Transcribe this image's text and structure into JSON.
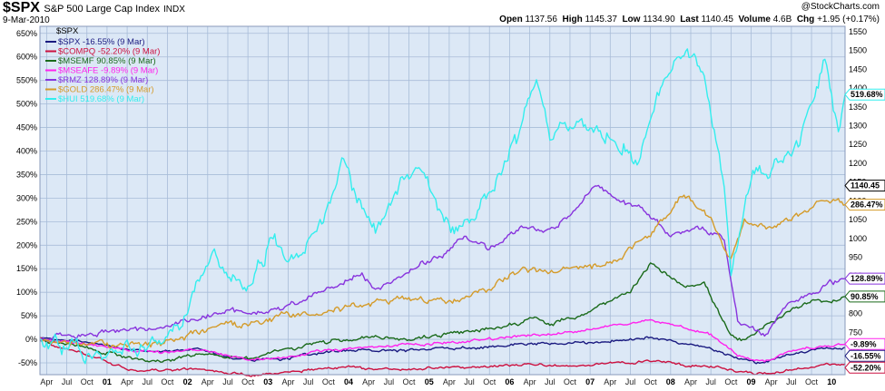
{
  "header": {
    "symbol": "$SPX",
    "name": "S&P 500 Large Cap Index",
    "exchange": "INDX",
    "date": "9-Mar-2010",
    "credit": "@StockCharts.com",
    "quote": {
      "open_label": "Open",
      "open": "1137.56",
      "high_label": "High",
      "high": "1145.37",
      "low_label": "Low",
      "low": "1134.90",
      "last_label": "Last",
      "last": "1140.45",
      "volume_label": "Volume",
      "volume": "4.6B",
      "chg_label": "Chg",
      "chg": "+1.95 (+0.17%)"
    }
  },
  "chart_data": {
    "type": "line",
    "legend_title": "$SPX",
    "legend_position": "top-left",
    "grid": true,
    "colors": {
      "background": "#dce8f6",
      "grid": "#a8bcd8",
      "frame": "#8899bb"
    },
    "left_axis": {
      "unit": "%",
      "ticks": [
        "650%",
        "600%",
        "550%",
        "500%",
        "450%",
        "400%",
        "350%",
        "300%",
        "250%",
        "200%",
        "150%",
        "100%",
        "50%",
        "0%",
        "-50%"
      ],
      "values": [
        650,
        600,
        550,
        500,
        450,
        400,
        350,
        300,
        250,
        200,
        150,
        100,
        50,
        0,
        -50
      ],
      "range": [
        -75,
        665
      ]
    },
    "right_axis": {
      "ticks": [
        "1550",
        "1500",
        "1450",
        "1400",
        "1350",
        "1300",
        "1250",
        "1200",
        "1150",
        "1100",
        "1050",
        "1000",
        "950",
        "900",
        "850",
        "800",
        "750",
        "700"
      ],
      "values": [
        1550,
        1500,
        1450,
        1400,
        1350,
        1300,
        1250,
        1200,
        1150,
        1100,
        1050,
        1000,
        950,
        900,
        850,
        800,
        750,
        700
      ]
    },
    "x_axis": {
      "start": "2000-03",
      "end": "2010-03",
      "labels": [
        "Apr",
        "Jul",
        "Oct",
        "01",
        "Apr",
        "Jul",
        "Oct",
        "02",
        "Apr",
        "Jul",
        "Oct",
        "03",
        "Apr",
        "Jul",
        "Oct",
        "04",
        "Apr",
        "Jul",
        "Oct",
        "05",
        "Apr",
        "Jul",
        "Oct",
        "06",
        "Apr",
        "Jul",
        "Oct",
        "07",
        "Apr",
        "Jul",
        "Oct",
        "08",
        "Apr",
        "Jul",
        "Oct",
        "09",
        "Apr",
        "Jul",
        "Oct",
        "10"
      ],
      "label_dates": [
        "2000-04",
        "2000-07",
        "2000-10",
        "2001-01",
        "2001-04",
        "2001-07",
        "2001-10",
        "2002-01",
        "2002-04",
        "2002-07",
        "2002-10",
        "2003-01",
        "2003-04",
        "2003-07",
        "2003-10",
        "2004-01",
        "2004-04",
        "2004-07",
        "2004-10",
        "2005-01",
        "2005-04",
        "2005-07",
        "2005-10",
        "2006-01",
        "2006-04",
        "2006-07",
        "2006-10",
        "2007-01",
        "2007-04",
        "2007-07",
        "2007-10",
        "2008-01",
        "2008-04",
        "2008-07",
        "2008-10",
        "2009-01",
        "2009-04",
        "2009-07",
        "2009-10",
        "2010-01"
      ]
    },
    "series": [
      {
        "name": "$SPX -16.55% (9 Mar)",
        "end_label": "-16.55%",
        "color": "#1a1a80",
        "noise": 2,
        "dates": [
          "2000-03",
          "2000-09",
          "2001-03",
          "2001-09",
          "2002-03",
          "2002-07",
          "2002-10",
          "2003-03",
          "2003-09",
          "2004-03",
          "2004-09",
          "2005-03",
          "2005-09",
          "2006-03",
          "2006-09",
          "2007-03",
          "2007-10",
          "2008-03",
          "2008-07",
          "2008-11",
          "2009-03",
          "2009-06",
          "2009-09",
          "2010-01",
          "2010-03"
        ],
        "values": [
          0,
          -3,
          -20,
          -28,
          -20,
          -37,
          -45,
          -42,
          -28,
          -22,
          -24,
          -19,
          -17,
          -10,
          -9,
          -5,
          5,
          -10,
          -18,
          -42,
          -52,
          -32,
          -25,
          -18,
          -17
        ]
      },
      {
        "name": "$COMPQ -52.20% (9 Mar)",
        "end_label": "-52.20%",
        "color": "#cc1140",
        "noise": 2,
        "dates": [
          "2000-03",
          "2000-06",
          "2000-09",
          "2001-01",
          "2001-04",
          "2001-09",
          "2002-03",
          "2002-10",
          "2003-03",
          "2003-09",
          "2004-01",
          "2004-09",
          "2005-06",
          "2006-03",
          "2006-09",
          "2007-03",
          "2007-10",
          "2008-03",
          "2008-09",
          "2008-11",
          "2009-03",
          "2009-09",
          "2010-01",
          "2010-03"
        ],
        "values": [
          5,
          -20,
          -28,
          -47,
          -62,
          -68,
          -62,
          -76,
          -73,
          -62,
          -60,
          -63,
          -60,
          -55,
          -56,
          -52,
          -45,
          -55,
          -58,
          -70,
          -74,
          -60,
          -54,
          -52
        ]
      },
      {
        "name": "$MSEMF 90.85% (9 Mar)",
        "end_label": "90.85%",
        "color": "#1a6a1a",
        "noise": 3,
        "dates": [
          "2000-03",
          "2000-09",
          "2001-03",
          "2001-09",
          "2002-03",
          "2002-10",
          "2003-04",
          "2003-10",
          "2004-04",
          "2004-09",
          "2005-04",
          "2005-10",
          "2006-05",
          "2006-07",
          "2007-01",
          "2007-07",
          "2007-10",
          "2008-03",
          "2008-06",
          "2008-10",
          "2008-12",
          "2009-06",
          "2009-10",
          "2010-01",
          "2010-03"
        ],
        "values": [
          0,
          -15,
          -35,
          -50,
          -30,
          -40,
          -20,
          -5,
          5,
          0,
          10,
          22,
          45,
          30,
          60,
          100,
          160,
          115,
          120,
          5,
          -5,
          55,
          85,
          80,
          91
        ]
      },
      {
        "name": "$MSEAFE -9.89% (9 Mar)",
        "end_label": "-9.89%",
        "color": "#ff22ee",
        "noise": 2,
        "dates": [
          "2000-03",
          "2000-09",
          "2001-03",
          "2001-09",
          "2002-03",
          "2002-10",
          "2003-03",
          "2003-10",
          "2004-04",
          "2004-10",
          "2005-04",
          "2005-10",
          "2006-05",
          "2006-10",
          "2007-05",
          "2007-10",
          "2008-04",
          "2008-07",
          "2008-11",
          "2009-03",
          "2009-07",
          "2009-10",
          "2010-01",
          "2010-03"
        ],
        "values": [
          0,
          -8,
          -20,
          -28,
          -22,
          -42,
          -40,
          -22,
          -18,
          -10,
          -8,
          0,
          10,
          15,
          30,
          40,
          20,
          10,
          -35,
          -48,
          -25,
          -15,
          -12,
          -10
        ]
      },
      {
        "name": "$RMZ 128.89% (9 Mar)",
        "end_label": "128.89%",
        "color": "#8833dd",
        "noise": 4,
        "dates": [
          "2000-03",
          "2000-09",
          "2001-03",
          "2001-09",
          "2002-03",
          "2002-07",
          "2002-10",
          "2003-03",
          "2003-10",
          "2004-03",
          "2004-05",
          "2004-10",
          "2005-03",
          "2005-06",
          "2005-10",
          "2006-03",
          "2006-07",
          "2006-10",
          "2007-02",
          "2007-05",
          "2007-09",
          "2008-01",
          "2008-05",
          "2008-09",
          "2008-11",
          "2009-03",
          "2009-06",
          "2009-10",
          "2010-01",
          "2010-03"
        ],
        "values": [
          0,
          10,
          20,
          25,
          50,
          60,
          55,
          65,
          110,
          140,
          100,
          150,
          180,
          220,
          190,
          240,
          230,
          265,
          330,
          300,
          270,
          220,
          240,
          210,
          40,
          10,
          70,
          100,
          120,
          129
        ]
      },
      {
        "name": "$GOLD 286.47% (9 Mar)",
        "end_label": "286.47%",
        "color": "#d49b2a",
        "noise": 5,
        "dates": [
          "2000-03",
          "2000-09",
          "2001-03",
          "2001-09",
          "2002-03",
          "2002-07",
          "2002-10",
          "2003-03",
          "2003-10",
          "2004-03",
          "2004-10",
          "2005-04",
          "2005-10",
          "2006-03",
          "2006-07",
          "2006-10",
          "2007-04",
          "2007-10",
          "2008-03",
          "2008-07",
          "2008-10",
          "2008-12",
          "2009-04",
          "2009-09",
          "2009-12",
          "2010-03"
        ],
        "values": [
          0,
          -10,
          -12,
          -10,
          15,
          40,
          30,
          50,
          65,
          70,
          90,
          80,
          110,
          150,
          140,
          150,
          160,
          220,
          310,
          250,
          170,
          250,
          240,
          270,
          300,
          286
        ]
      },
      {
        "name": "$HUI 519.68% (9 Mar)",
        "end_label": "519.68%",
        "color": "#33eeee",
        "noise": 12,
        "dates": [
          "2000-03",
          "2000-09",
          "2000-11",
          "2001-03",
          "2001-09",
          "2002-01",
          "2002-05",
          "2002-07",
          "2002-10",
          "2003-02",
          "2003-04",
          "2003-09",
          "2003-12",
          "2004-02",
          "2004-05",
          "2004-09",
          "2004-12",
          "2005-04",
          "2005-07",
          "2005-10",
          "2006-02",
          "2006-05",
          "2006-07",
          "2006-10",
          "2007-02",
          "2007-06",
          "2007-08",
          "2007-11",
          "2008-03",
          "2008-06",
          "2008-09",
          "2008-10",
          "2009-01",
          "2009-05",
          "2009-08",
          "2009-12",
          "2010-02",
          "2010-03"
        ],
        "values": [
          0,
          -30,
          -45,
          -25,
          -5,
          60,
          200,
          120,
          110,
          230,
          150,
          240,
          370,
          310,
          230,
          340,
          350,
          230,
          240,
          310,
          420,
          540,
          420,
          460,
          450,
          420,
          380,
          520,
          620,
          560,
          330,
          150,
          350,
          380,
          400,
          600,
          430,
          520
        ]
      }
    ]
  }
}
